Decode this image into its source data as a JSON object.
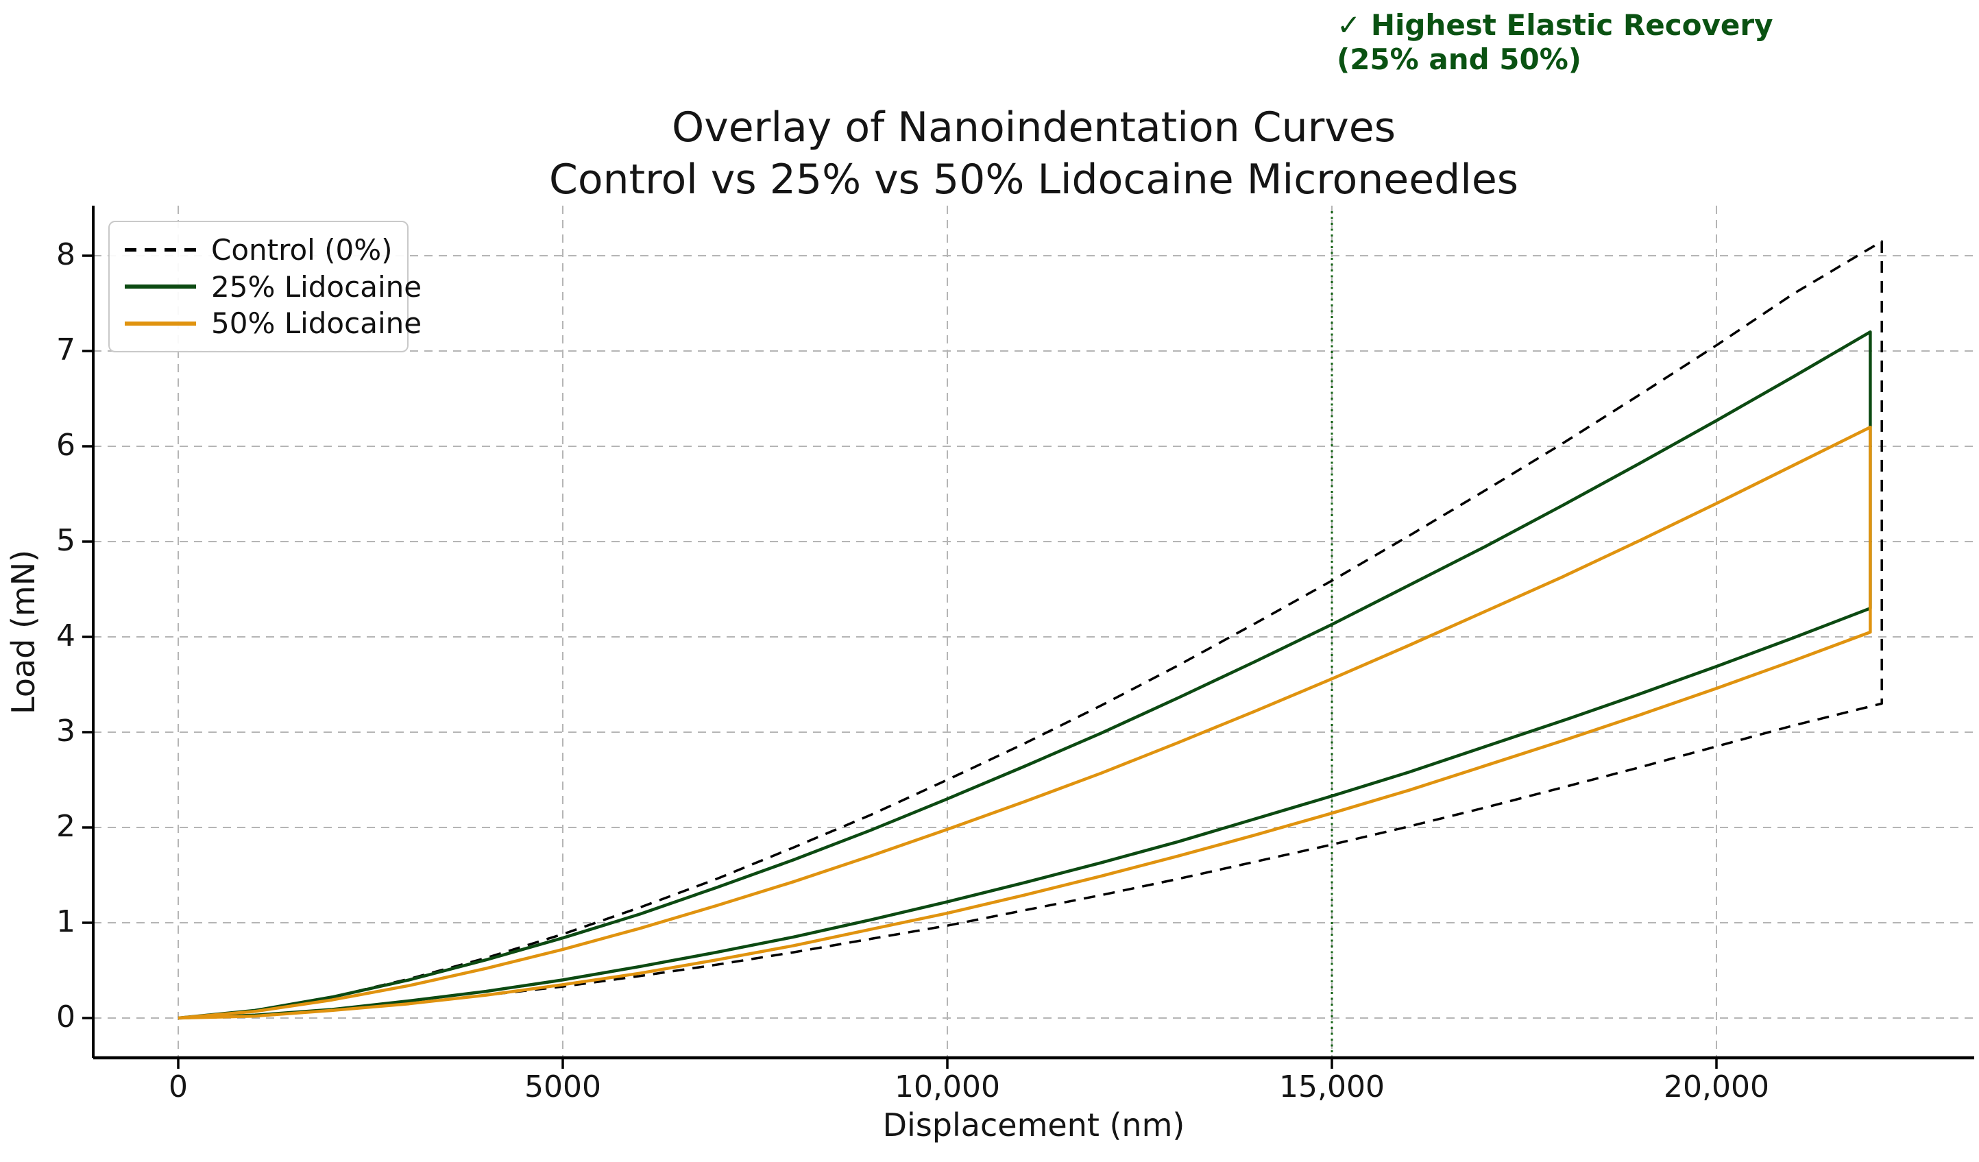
{
  "figure": {
    "title_line1": "Overlay of Nanoindentation Curves",
    "title_line2": "Control vs 25% vs 50% Lidocaine Microneedles",
    "annotation": {
      "line1": "✓ Highest Elastic Recovery",
      "line2": "(25% and 50%)",
      "color": "#0a5212"
    }
  },
  "chart_data": {
    "type": "line",
    "title": "Overlay of Nanoindentation Curves",
    "subtitle": "Control vs 25% vs 50% Lidocaine Microneedles",
    "xlabel": "Displacement (nm)",
    "ylabel": "Load (mN)",
    "xlim": [
      -1100,
      23400
    ],
    "ylim": [
      -0.42,
      8.53
    ],
    "grid": true,
    "grid_color": "#b5b5b5",
    "legend_position": "upper left",
    "xticks": [
      {
        "value": 0,
        "label": "0"
      },
      {
        "value": 5000,
        "label": "5000"
      },
      {
        "value": 10000,
        "label": "10,000"
      },
      {
        "value": 15000,
        "label": "15,000"
      },
      {
        "value": 20000,
        "label": "20,000"
      }
    ],
    "yticks": [
      {
        "value": 0,
        "label": "0"
      },
      {
        "value": 1,
        "label": "1"
      },
      {
        "value": 2,
        "label": "2"
      },
      {
        "value": 3,
        "label": "3"
      },
      {
        "value": 4,
        "label": "4"
      },
      {
        "value": 5,
        "label": "5"
      },
      {
        "value": 6,
        "label": "6"
      },
      {
        "value": 7,
        "label": "7"
      },
      {
        "value": 8,
        "label": "8"
      }
    ],
    "marker_line": {
      "x": 15000,
      "color": "#0b5e0b",
      "style": "dotted"
    },
    "x_nm": [
      0,
      1000,
      2000,
      3000,
      4000,
      5000,
      6000,
      7000,
      8000,
      9000,
      10000,
      11000,
      12000,
      13000,
      14000,
      15000,
      16000,
      17000,
      18000,
      19000,
      20000,
      21000,
      22000
    ],
    "series": [
      {
        "name": "Control (0%)",
        "color": "#000000",
        "style": "dashed",
        "end_x": 22150,
        "max_load": 8.15,
        "load_after_unload_drop": 3.3,
        "loading": [
          0,
          0.08,
          0.22,
          0.41,
          0.63,
          0.88,
          1.16,
          1.46,
          1.79,
          2.13,
          2.5,
          2.88,
          3.28,
          3.7,
          4.14,
          4.59,
          5.06,
          5.54,
          6.03,
          6.54,
          7.06,
          7.6,
          8.15
        ],
        "unloading": [
          0,
          0.03,
          0.08,
          0.15,
          0.24,
          0.33,
          0.44,
          0.56,
          0.69,
          0.83,
          0.97,
          1.13,
          1.29,
          1.46,
          1.64,
          1.82,
          2.01,
          2.21,
          2.42,
          2.63,
          2.85,
          3.07,
          3.3
        ]
      },
      {
        "name": "25% Lidocaine",
        "color": "#0c4a12",
        "style": "solid",
        "end_x": 22000,
        "max_load": 7.2,
        "load_after_unload_drop": 4.3,
        "loading": [
          0,
          0.08,
          0.22,
          0.4,
          0.61,
          0.84,
          1.09,
          1.37,
          1.66,
          1.97,
          2.3,
          2.64,
          2.99,
          3.36,
          3.74,
          4.13,
          4.54,
          4.95,
          5.38,
          5.82,
          6.27,
          6.73,
          7.2
        ],
        "unloading": [
          0,
          0.03,
          0.09,
          0.18,
          0.28,
          0.4,
          0.54,
          0.69,
          0.85,
          1.03,
          1.22,
          1.42,
          1.63,
          1.85,
          2.09,
          2.33,
          2.58,
          2.85,
          3.12,
          3.4,
          3.69,
          3.99,
          4.3
        ]
      },
      {
        "name": "50% Lidocaine",
        "color": "#e0930f",
        "style": "solid",
        "end_x": 22000,
        "max_load": 6.2,
        "load_after_unload_drop": 4.05,
        "loading": [
          0,
          0.07,
          0.19,
          0.34,
          0.52,
          0.72,
          0.94,
          1.18,
          1.43,
          1.7,
          1.98,
          2.27,
          2.57,
          2.89,
          3.22,
          3.56,
          3.91,
          4.27,
          4.63,
          5.01,
          5.4,
          5.8,
          6.2
        ],
        "unloading": [
          0,
          0.02,
          0.08,
          0.15,
          0.24,
          0.35,
          0.47,
          0.61,
          0.76,
          0.93,
          1.1,
          1.29,
          1.49,
          1.7,
          1.92,
          2.15,
          2.39,
          2.65,
          2.91,
          3.18,
          3.46,
          3.75,
          4.05
        ]
      }
    ]
  }
}
